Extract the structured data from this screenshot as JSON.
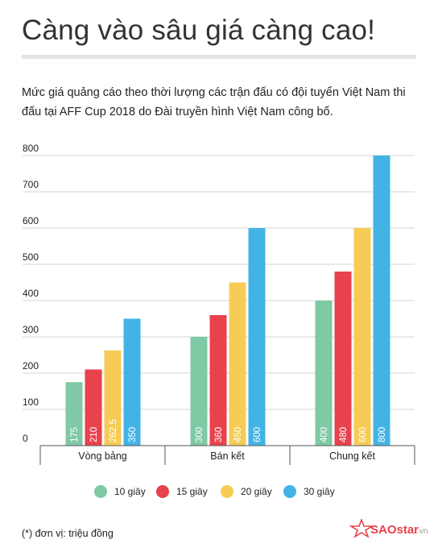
{
  "header": {
    "title": "Càng vào sâu giá càng cao!",
    "subtitle": "Mức giá quảng cáo theo thời lượng các trận đấu có đội tuyển Việt Nam thi đấu tại AFF Cup 2018 do Đài truyền hình Việt Nam công bố."
  },
  "colors": {
    "10 giây": "#7fc9a4",
    "15 giây": "#e8424c",
    "20 giây": "#f6cc56",
    "30 giây": "#43b3e6",
    "grid": "#d6d6d6",
    "axis": "#555555"
  },
  "chart_data": {
    "type": "bar",
    "categories": [
      "Vòng bảng",
      "Bán kết",
      "Chung kết"
    ],
    "series": [
      {
        "name": "10 giây",
        "values": [
          175,
          300,
          400
        ],
        "labels": [
          "175",
          "300",
          "400"
        ]
      },
      {
        "name": "15 giây",
        "values": [
          210,
          360,
          480
        ],
        "labels": [
          "210",
          "360",
          "480"
        ]
      },
      {
        "name": "20 giây",
        "values": [
          262.5,
          450,
          600
        ],
        "labels": [
          "262.5",
          "450",
          "600"
        ]
      },
      {
        "name": "30 giây",
        "values": [
          350,
          600,
          800
        ],
        "labels": [
          "350",
          "600",
          "800"
        ]
      }
    ],
    "yticks": [
      "0",
      "100",
      "200",
      "300",
      "400",
      "500",
      "600",
      "700",
      "800"
    ],
    "ylim": [
      0,
      800
    ],
    "grid": true,
    "legend": "bottom"
  },
  "footnote": "(*) đơn vị: triệu đồng",
  "logo": {
    "brand": "SAOstar",
    "suffix": ".vn"
  }
}
